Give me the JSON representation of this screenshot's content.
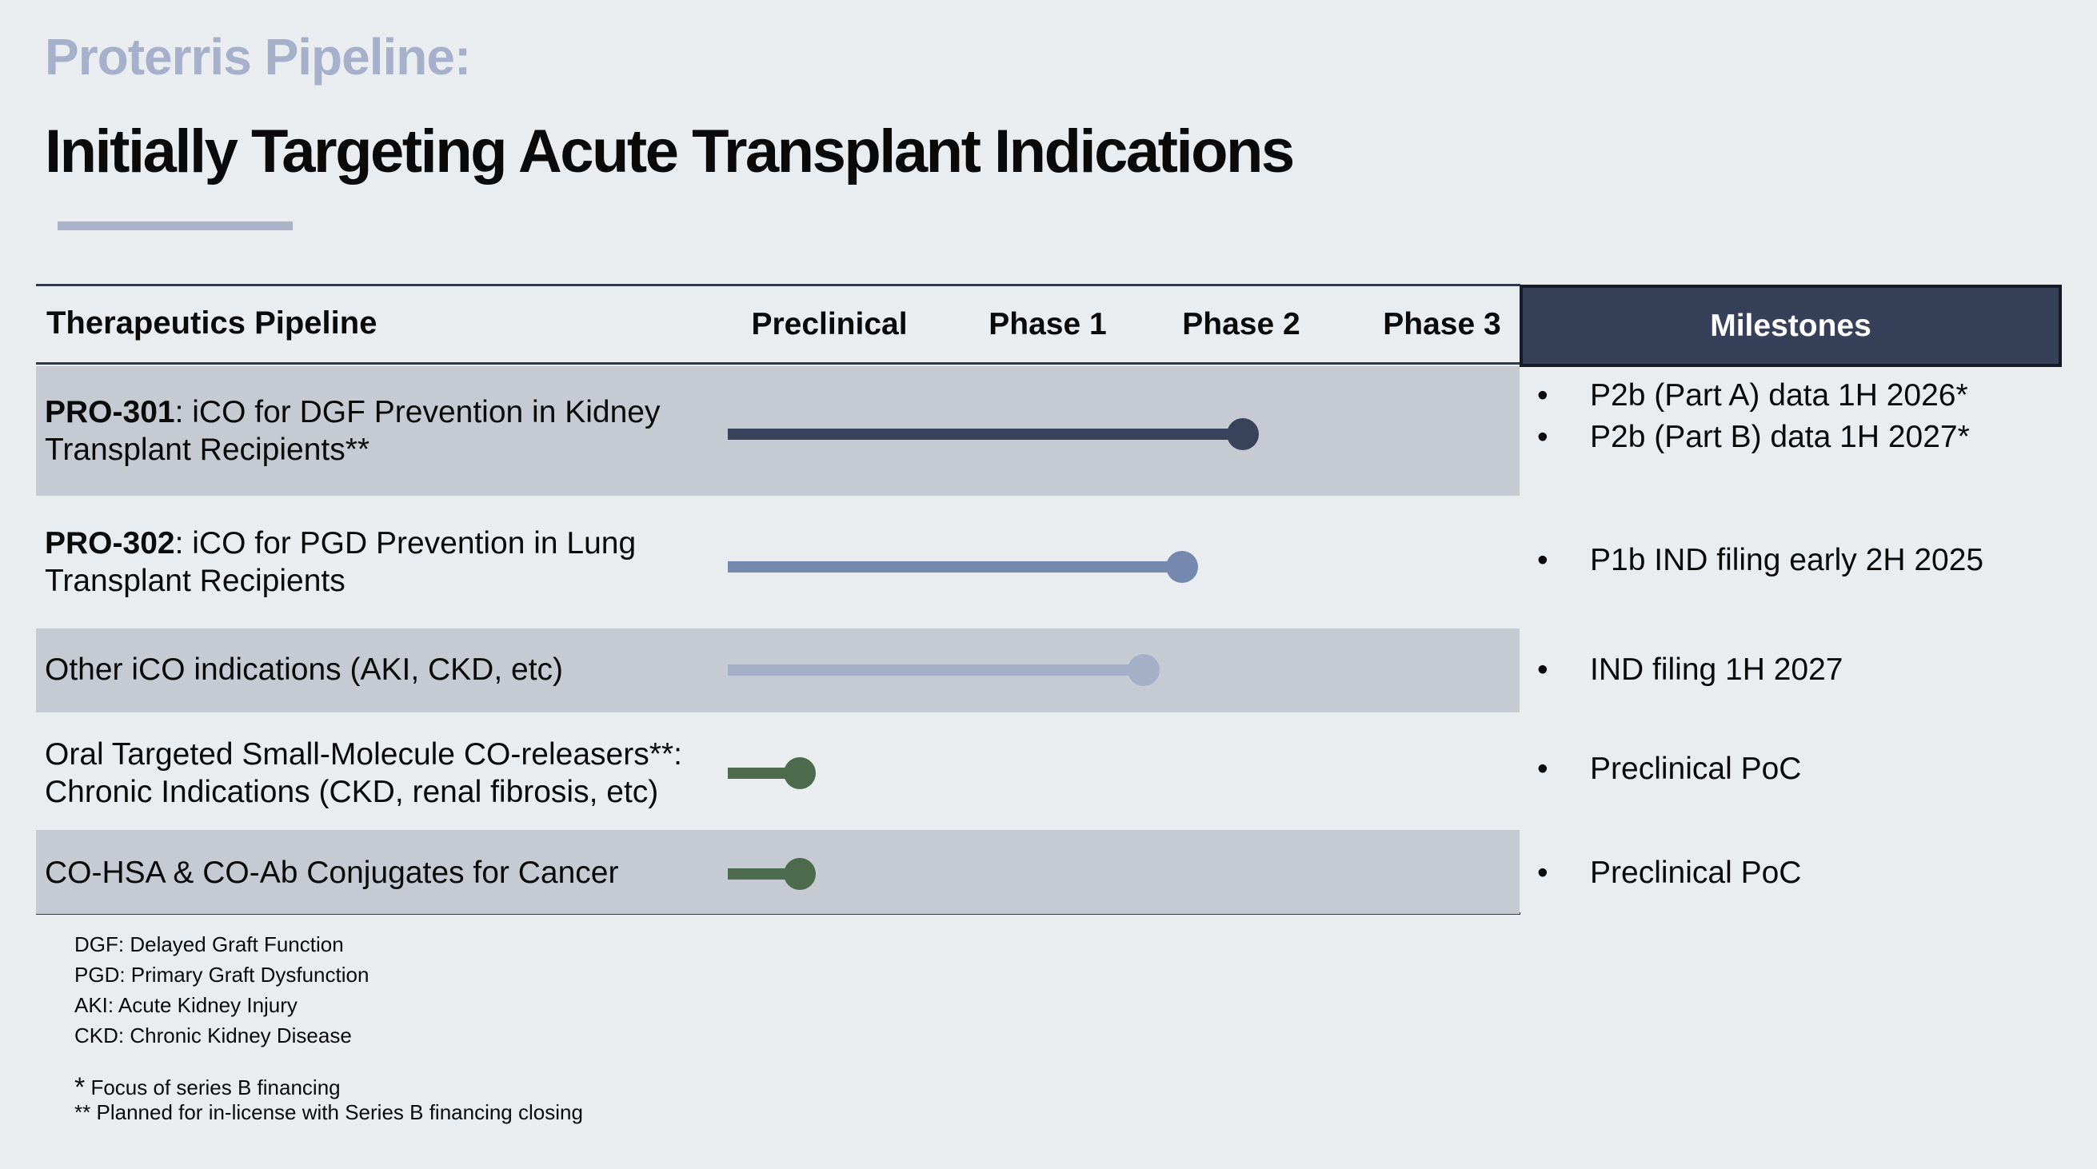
{
  "colors": {
    "page_bg": "#E9EDF0",
    "text": "#0A0A0A",
    "title_accent": "#A6B0CB",
    "accent_bar": "#A9B2C7",
    "rule": "#2E3A52",
    "row_shade": "#C6CAD3",
    "navy_fill": "#364159",
    "navy_edge": "#161B26",
    "bar_navy": "#38425A",
    "bar_blue": "#7588AD",
    "bar_lightblue": "#A3B0C8",
    "bar_green": "#4C6A4C",
    "milestones_text": "#FFFFFF"
  },
  "slide": {
    "kicker": "Proterris Pipeline:",
    "title": "Initially Targeting Acute Transplant Indications"
  },
  "bullet_glyph": "•",
  "table": {
    "pipeline_header": "Therapeutics Pipeline",
    "phase_headers": [
      "Preclinical",
      "Phase 1",
      "Phase 2",
      "Phase 3"
    ],
    "milestones_header": "Milestones",
    "rows": [
      {
        "label_bold": "PRO-301",
        "label_rest": ": iCO for DGF Prevention in Kidney Transplant Recipients**",
        "bar": {
          "color": "#38425A",
          "end_pct": 65.7,
          "phase_reached": "Phase 2"
        },
        "milestones": [
          "P2b (Part A) data 1H 2026*",
          "P2b (Part B) data 1H 2027*"
        ]
      },
      {
        "label_bold": "PRO-302",
        "label_rest": ": iCO for PGD Prevention in Lung Transplant Recipients",
        "bar": {
          "color": "#7588AD",
          "end_pct": 58.0,
          "phase_reached": "entering Phase 2"
        },
        "milestones": [
          "P1b IND filing early 2H 2025"
        ]
      },
      {
        "label_bold": "",
        "label_rest": "Other iCO indications (AKI, CKD, etc)",
        "bar": {
          "color": "#A3B0C8",
          "end_pct": 53.1,
          "phase_reached": "late Phase 1"
        },
        "milestones": [
          "IND filing 1H 2027"
        ]
      },
      {
        "label_bold": "",
        "label_rest": "Oral Targeted Small-Molecule CO-releasers**: Chronic Indications (CKD, renal fibrosis, etc)",
        "bar": {
          "color": "#4C6A4C",
          "end_pct": 9.2,
          "phase_reached": "Preclinical"
        },
        "milestones": [
          "Preclinical PoC"
        ]
      },
      {
        "label_bold": "",
        "label_rest": "CO-HSA & CO-Ab Conjugates for Cancer",
        "bar": {
          "color": "#4C6A4C",
          "end_pct": 9.2,
          "phase_reached": "Preclinical"
        },
        "milestones": [
          "Preclinical PoC"
        ]
      }
    ]
  },
  "footnotes": {
    "abbreviations": [
      "DGF: Delayed Graft Function",
      "PGD: Primary Graft Dysfunction",
      "AKI: Acute Kidney Injury",
      "CKD: Chronic Kidney Disease"
    ],
    "notes": [
      {
        "marker": "*",
        "text": "Focus of series B financing"
      },
      {
        "marker": "**",
        "text": "Planned for in-license with Series B financing closing"
      }
    ]
  }
}
